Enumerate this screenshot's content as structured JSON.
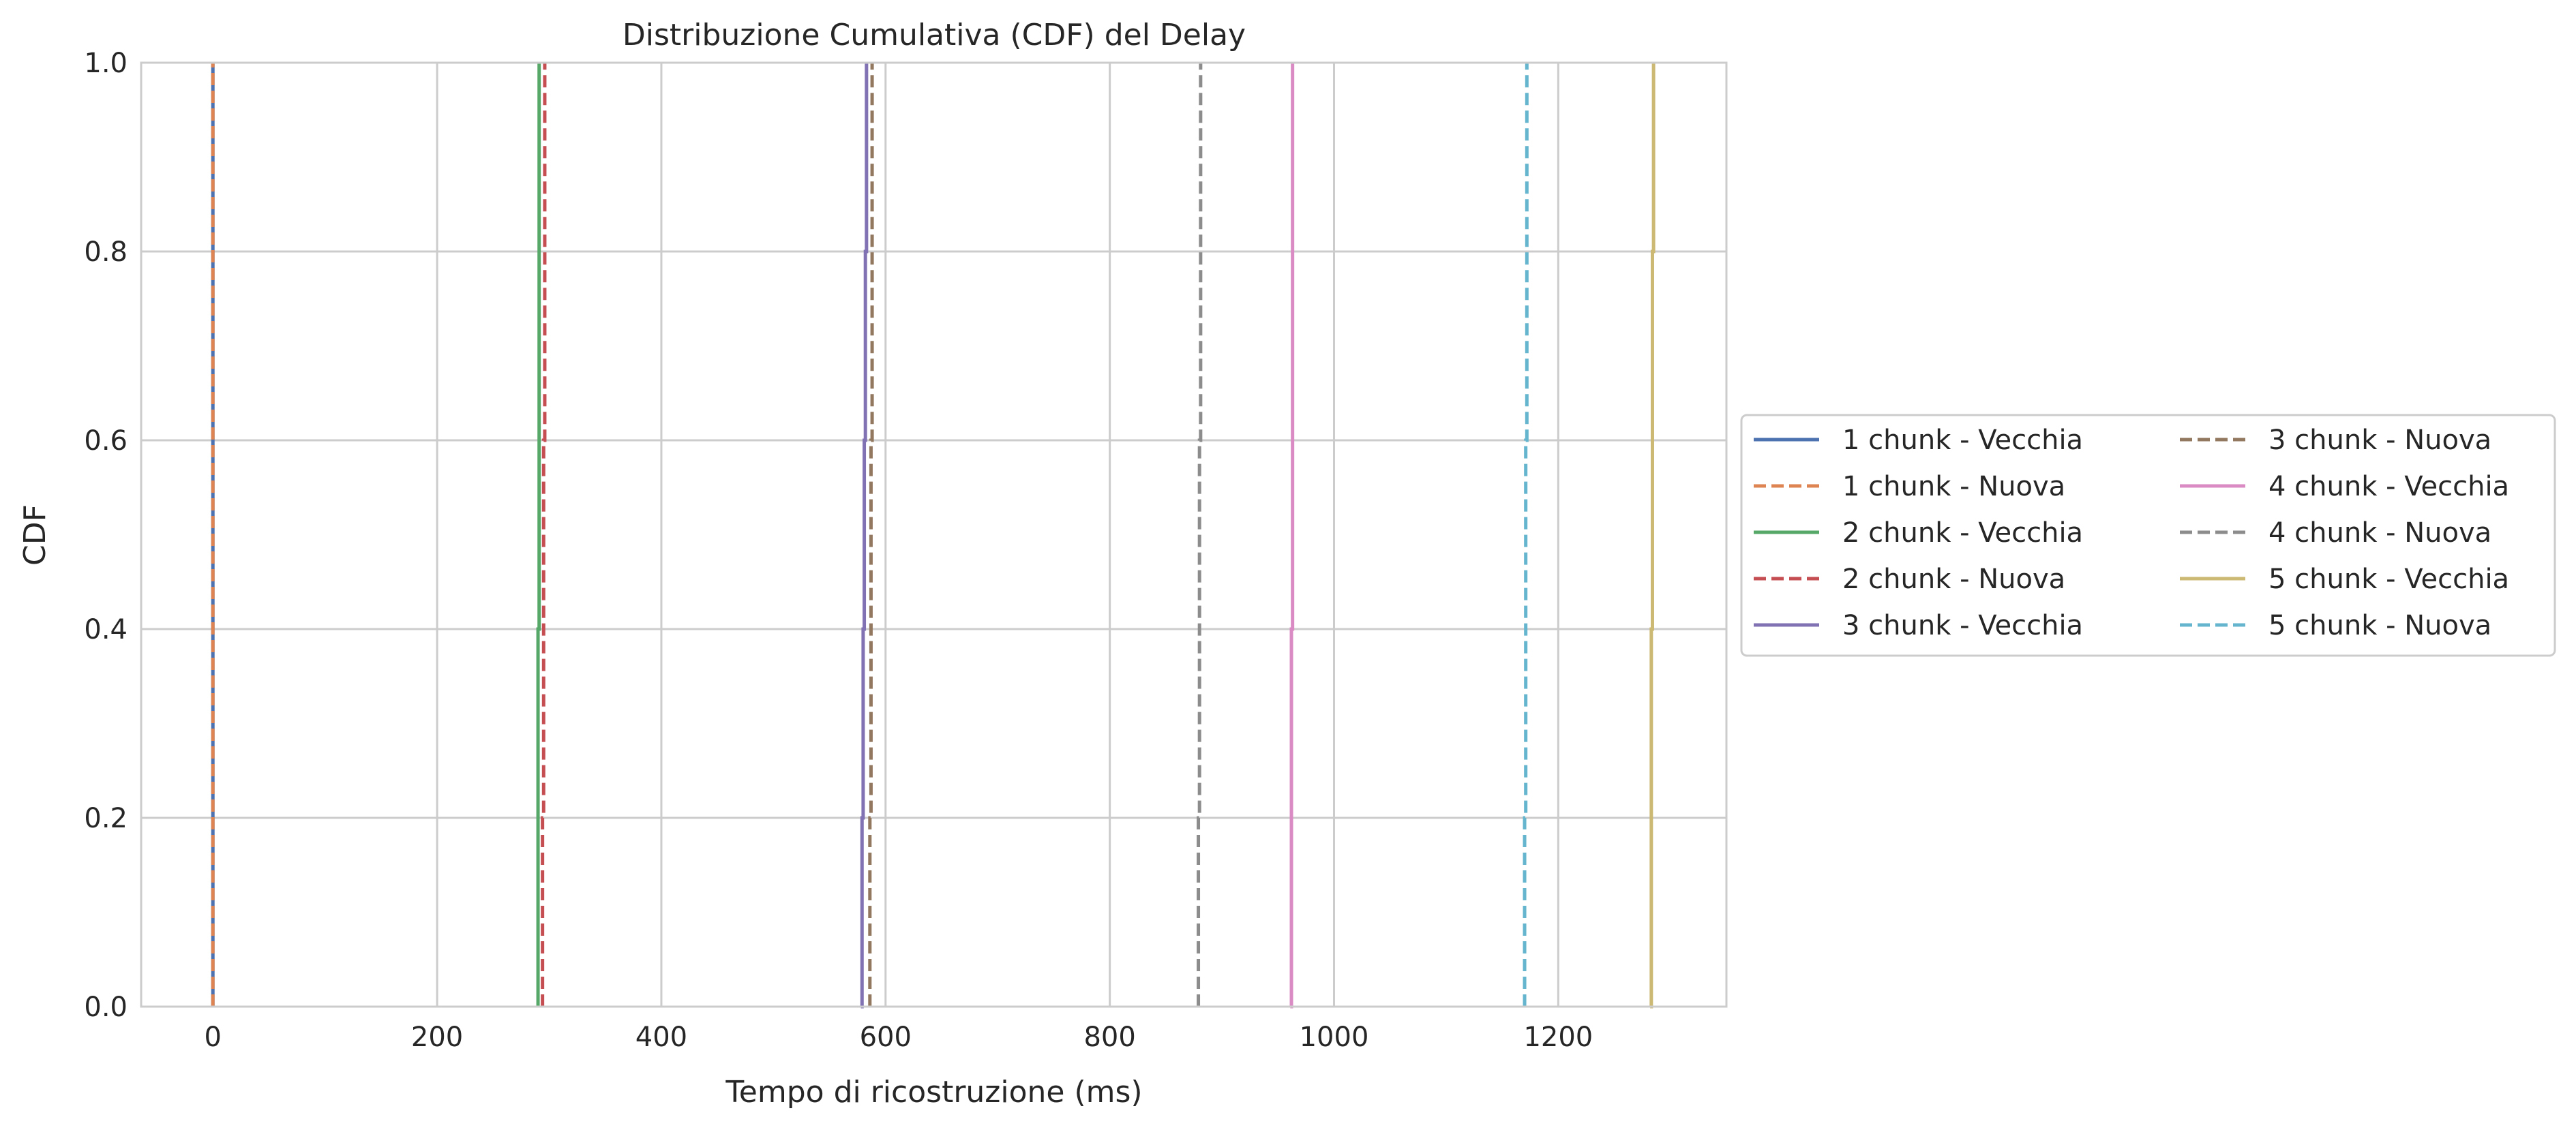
{
  "chart_data": {
    "type": "line",
    "title": "Distribuzione Cumulativa (CDF) del Delay",
    "xlabel": "Tempo di ricostruzione (ms)",
    "ylabel": "CDF",
    "xlim": [
      -64,
      1350
    ],
    "ylim": [
      0.0,
      1.0
    ],
    "x_ticks": [
      0,
      200,
      400,
      600,
      800,
      1000,
      1200
    ],
    "y_ticks": [
      0.0,
      0.2,
      0.4,
      0.6,
      0.8,
      1.0
    ],
    "x_tick_labels": [
      "0",
      "200",
      "400",
      "600",
      "800",
      "1000",
      "1200"
    ],
    "y_tick_labels": [
      "0.0",
      "0.2",
      "0.4",
      "0.6",
      "0.8",
      "1.0"
    ],
    "grid": true,
    "legend_position": "right-outside",
    "legend_columns": 2,
    "series": [
      {
        "name": "1 chunk - Vecchia",
        "color": "#4c72b0",
        "dash": "solid",
        "x": [
          0,
          0,
          0,
          0,
          0,
          0
        ],
        "y": [
          0.0,
          0.2,
          0.4,
          0.6,
          0.8,
          1.0
        ]
      },
      {
        "name": "1 chunk - Nuova",
        "color": "#dd8452",
        "dash": "dashed",
        "x": [
          0,
          0,
          0,
          0,
          0,
          0
        ],
        "y": [
          0.0,
          0.2,
          0.4,
          0.6,
          0.8,
          1.0
        ]
      },
      {
        "name": "2 chunk - Vecchia",
        "color": "#55a868",
        "dash": "solid",
        "x": [
          290,
          290,
          290,
          291,
          291,
          291
        ],
        "y": [
          0.0,
          0.2,
          0.4,
          0.6,
          0.8,
          1.0
        ]
      },
      {
        "name": "2 chunk - Nuova",
        "color": "#c44e52",
        "dash": "dashed",
        "x": [
          294,
          294,
          295,
          295,
          296,
          296
        ],
        "y": [
          0.0,
          0.2,
          0.4,
          0.6,
          0.8,
          1.0
        ]
      },
      {
        "name": "3 chunk - Vecchia",
        "color": "#8172b3",
        "dash": "solid",
        "x": [
          578,
          579,
          580,
          581,
          582,
          583
        ],
        "y": [
          0.0,
          0.2,
          0.4,
          0.6,
          0.8,
          1.0
        ]
      },
      {
        "name": "3 chunk - Nuova",
        "color": "#937860",
        "dash": "dashed",
        "x": [
          586,
          586,
          587,
          587,
          588,
          588
        ],
        "y": [
          0.0,
          0.2,
          0.4,
          0.6,
          0.8,
          1.0
        ]
      },
      {
        "name": "4 chunk - Vecchia",
        "color": "#da8bc3",
        "dash": "solid",
        "x": [
          961,
          962,
          962,
          963,
          963,
          963
        ],
        "y": [
          0.0,
          0.2,
          0.4,
          0.6,
          0.8,
          1.0
        ]
      },
      {
        "name": "4 chunk - Nuova",
        "color": "#8c8c8c",
        "dash": "dashed",
        "x": [
          879,
          879,
          880,
          880,
          881,
          881
        ],
        "y": [
          0.0,
          0.2,
          0.4,
          0.6,
          0.8,
          1.0
        ]
      },
      {
        "name": "5 chunk - Vecchia",
        "color": "#ccb974",
        "dash": "solid",
        "x": [
          1282,
          1283,
          1283,
          1284,
          1284,
          1285
        ],
        "y": [
          0.0,
          0.2,
          0.4,
          0.6,
          0.8,
          1.0
        ]
      },
      {
        "name": "5 chunk - Nuova",
        "color": "#64b5cd",
        "dash": "dashed",
        "x": [
          1170,
          1170,
          1171,
          1171,
          1172,
          1172
        ],
        "y": [
          0.0,
          0.2,
          0.4,
          0.6,
          0.8,
          1.0
        ]
      }
    ]
  }
}
